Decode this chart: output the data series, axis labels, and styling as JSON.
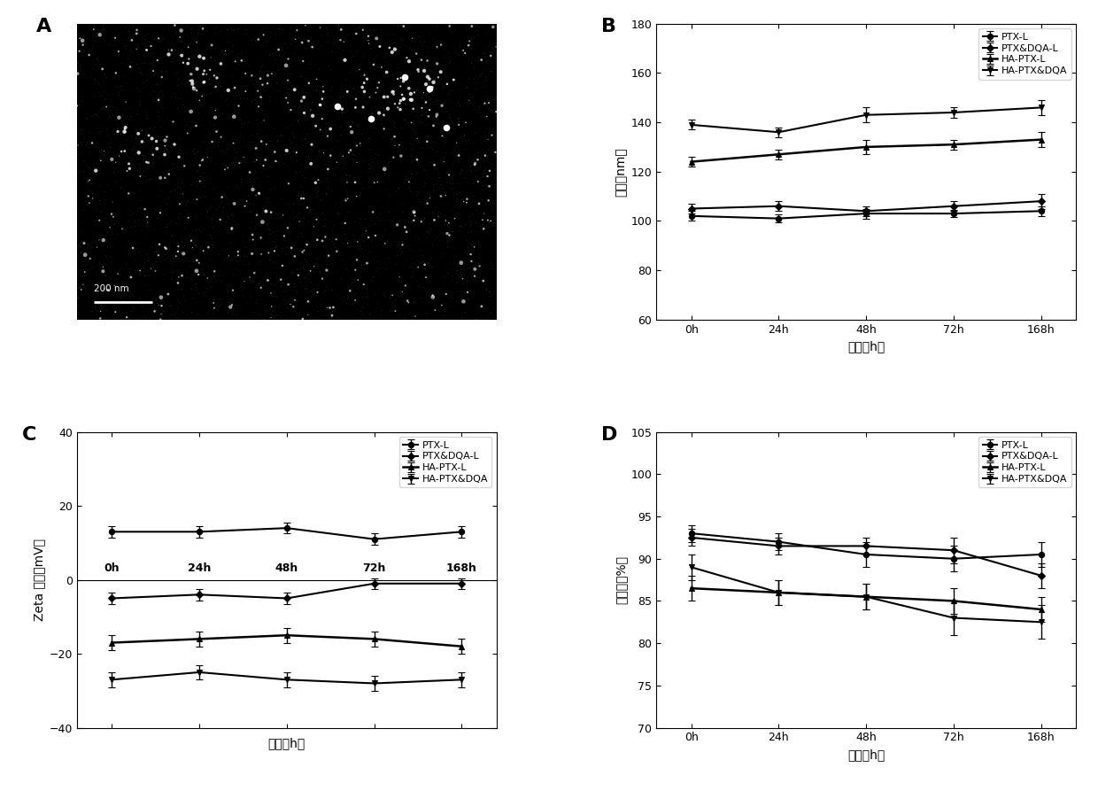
{
  "time_labels": [
    "0h",
    "24h",
    "48h",
    "72h",
    "168h"
  ],
  "time_x": [
    0,
    1,
    2,
    3,
    4
  ],
  "B_ylabel": "粒径（nm）",
  "B_xlabel": "时间（h）",
  "B_ylim": [
    60,
    180
  ],
  "B_yticks": [
    60,
    80,
    100,
    120,
    140,
    160,
    180
  ],
  "B_series": {
    "PTX-L": {
      "y": [
        102,
        101,
        103,
        103,
        104
      ],
      "yerr": [
        2,
        1.5,
        2,
        1.5,
        2
      ]
    },
    "PTX&DQA-L": {
      "y": [
        105,
        106,
        104,
        106,
        108
      ],
      "yerr": [
        2,
        2,
        2,
        2,
        3
      ]
    },
    "HA-PTX-L": {
      "y": [
        124,
        127,
        130,
        131,
        133
      ],
      "yerr": [
        2,
        2,
        3,
        2,
        3
      ]
    },
    "HA-PTX&DQA": {
      "y": [
        139,
        136,
        143,
        144,
        146
      ],
      "yerr": [
        2,
        2,
        3,
        2,
        3
      ]
    }
  },
  "C_ylabel": "Zeta 电位（mV）",
  "C_xlabel": "时间（h）",
  "C_ylim": [
    -40,
    40
  ],
  "C_yticks": [
    -40,
    -20,
    0,
    20,
    40
  ],
  "C_series": {
    "PTX-L": {
      "y": [
        13,
        13,
        14,
        11,
        13
      ],
      "yerr": [
        1.5,
        1.5,
        1.5,
        1.5,
        1.5
      ]
    },
    "PTX&DQA-L": {
      "y": [
        -5,
        -4,
        -5,
        -1,
        -1
      ],
      "yerr": [
        1.5,
        1.5,
        1.5,
        1.5,
        1.5
      ]
    },
    "HA-PTX-L": {
      "y": [
        -17,
        -16,
        -15,
        -16,
        -18
      ],
      "yerr": [
        2,
        2,
        2,
        2,
        2
      ]
    },
    "HA-PTX&DQA": {
      "y": [
        -27,
        -25,
        -27,
        -28,
        -27
      ],
      "yerr": [
        2,
        2,
        2,
        2,
        2
      ]
    }
  },
  "D_ylabel": "包封率（%）",
  "D_xlabel": "时间（h）",
  "D_ylim": [
    70,
    105
  ],
  "D_yticks": [
    70,
    75,
    80,
    85,
    90,
    95,
    100,
    105
  ],
  "D_series": {
    "PTX-L": {
      "y": [
        93,
        92,
        90.5,
        90,
        90.5
      ],
      "yerr": [
        1,
        1,
        1.5,
        1.5,
        1.5
      ]
    },
    "PTX&DQA-L": {
      "y": [
        92.5,
        91.5,
        91.5,
        91,
        88
      ],
      "yerr": [
        1,
        1,
        1,
        1.5,
        1.5
      ]
    },
    "HA-PTX-L": {
      "y": [
        86.5,
        86,
        85.5,
        85,
        84
      ],
      "yerr": [
        1.5,
        1.5,
        1.5,
        1.5,
        1.5
      ]
    },
    "HA-PTX&DQA": {
      "y": [
        89,
        86,
        85.5,
        83,
        82.5
      ],
      "yerr": [
        1.5,
        1.5,
        1.5,
        2,
        2
      ]
    }
  },
  "legend_labels": [
    "PTX-L",
    "PTX&DQA-L",
    "HA-PTX-L",
    "HA-PTX&DQA"
  ],
  "panel_labels": [
    "A",
    "B",
    "C",
    "D"
  ]
}
